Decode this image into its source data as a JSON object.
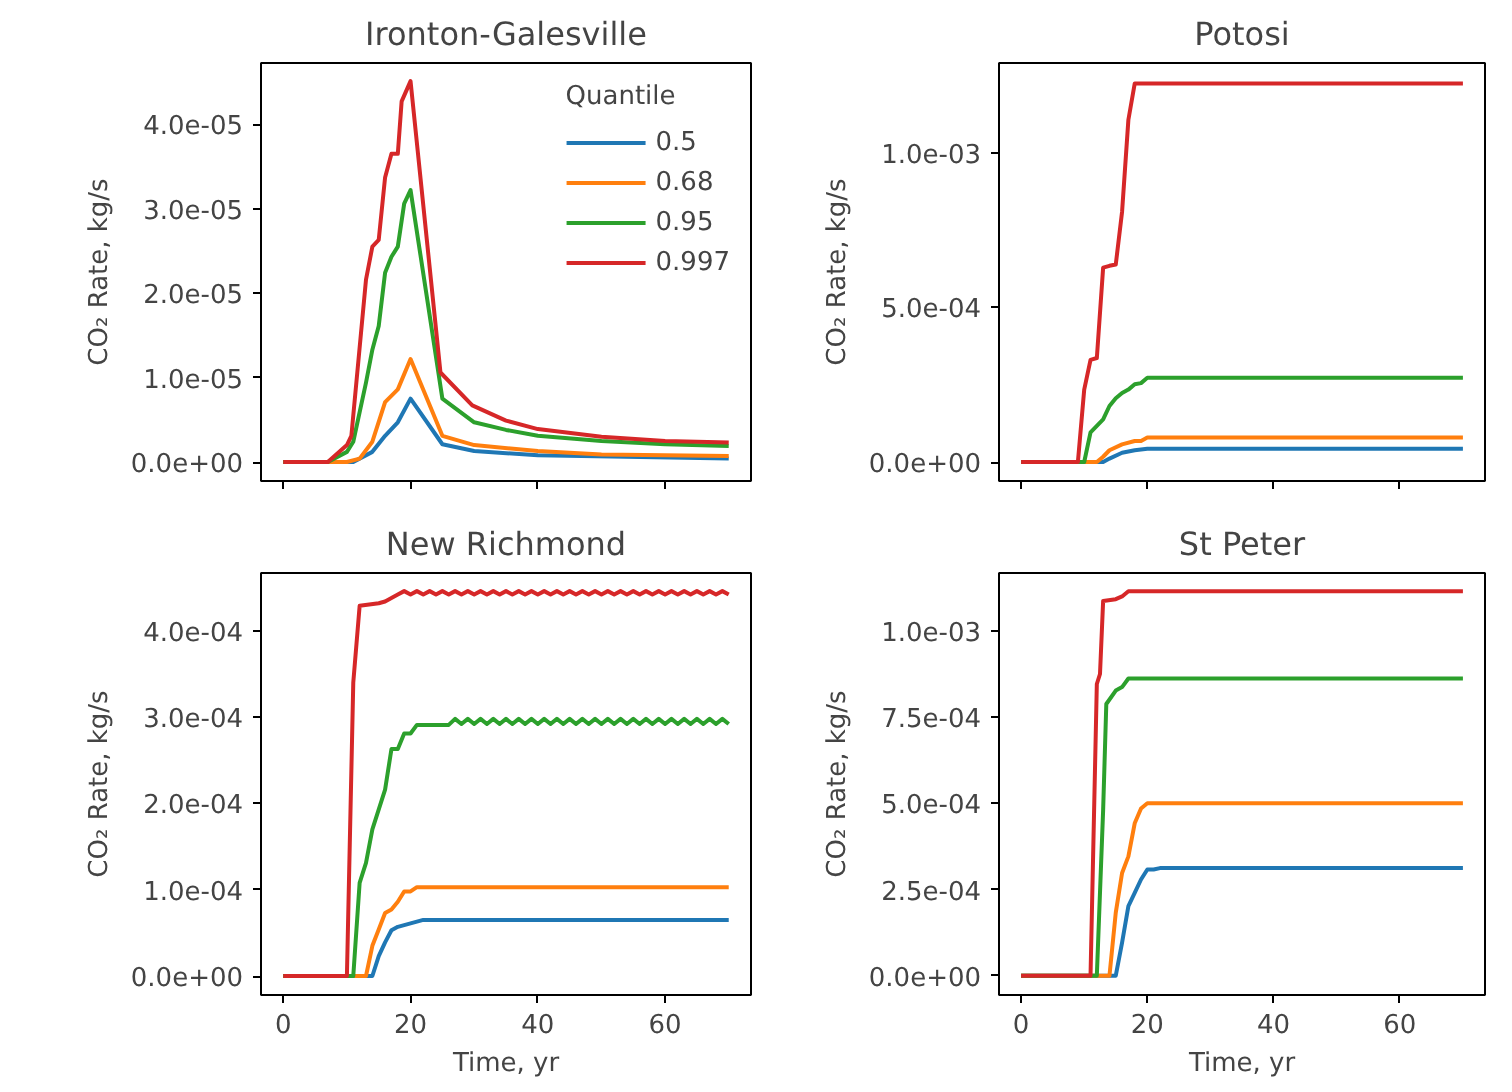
{
  "chart_data": [
    {
      "type": "line",
      "title": "Ironton-Galesville",
      "ylabel": "CO₂ Rate, kg/s",
      "xlim": [
        -3.5,
        73.5
      ],
      "xticks": [
        0,
        20,
        40,
        60
      ],
      "ylim": [
        -2.25e-06,
        4.725e-05
      ],
      "yticks": [
        {
          "value": 0,
          "label": "0.0e+00"
        },
        {
          "value": 1e-05,
          "label": "1.0e-05"
        },
        {
          "value": 2e-05,
          "label": "2.0e-05"
        },
        {
          "value": 3e-05,
          "label": "3.0e-05"
        },
        {
          "value": 4e-05,
          "label": "4.0e-05"
        }
      ],
      "tick_labels": "y",
      "grid": false,
      "legend": "top right",
      "legend_title": "Quantile",
      "line_style": "solid",
      "series": [
        {
          "name": "0.5",
          "color": "#1f77b4",
          "x": [
            0,
            11,
            14,
            16,
            18,
            20,
            25,
            30,
            40,
            70
          ],
          "values": [
            0,
            0,
            1.2e-06,
            3.1e-06,
            4.7e-06,
            7.5e-06,
            2.1e-06,
            1.3e-06,
            8e-07,
            4e-07
          ]
        },
        {
          "name": "0.68",
          "color": "#ff7f0e",
          "x": [
            0,
            10,
            12,
            14,
            16,
            18,
            20,
            25,
            30,
            40,
            50,
            70
          ],
          "values": [
            0,
            0,
            4e-07,
            2.4e-06,
            7.1e-06,
            8.6e-06,
            1.22e-05,
            3.1e-06,
            2e-06,
            1.3e-06,
            9e-07,
            7e-07
          ]
        },
        {
          "name": "0.95",
          "color": "#2ca02c",
          "x": [
            0,
            7,
            10,
            11,
            13,
            14,
            15,
            16,
            17,
            18,
            19,
            20,
            25,
            30,
            35,
            40,
            50,
            60,
            70
          ],
          "values": [
            0,
            0,
            1.2e-06,
            2.4e-06,
            9.4e-06,
            1.33e-05,
            1.61e-05,
            2.24e-05,
            2.43e-05,
            2.55e-05,
            3.06e-05,
            3.22e-05,
            7.5e-06,
            4.7e-06,
            3.8e-06,
            3.1e-06,
            2.5e-06,
            2.1e-06,
            1.9e-06
          ]
        },
        {
          "name": "0.997",
          "color": "#d62728",
          "x": [
            0,
            7,
            10,
            10.7,
            13,
            14,
            15,
            16,
            17,
            18,
            18.6,
            20,
            24.7,
            29.7,
            35,
            40,
            50,
            60,
            70
          ],
          "values": [
            0,
            0,
            2e-06,
            3.1e-06,
            2.16e-05,
            2.55e-05,
            2.63e-05,
            3.37e-05,
            3.65e-05,
            3.65e-05,
            4.27e-05,
            4.51e-05,
            1.06e-05,
            6.7e-06,
            4.9e-06,
            3.9e-06,
            3e-06,
            2.5e-06,
            2.3e-06
          ]
        }
      ]
    },
    {
      "type": "line",
      "title": "Potosi",
      "ylabel": "CO₂ Rate, kg/s",
      "xlim": [
        -3.5,
        73.5
      ],
      "xticks": [
        0,
        20,
        40,
        60
      ],
      "ylim": [
        -6.14e-05,
        0.0012894
      ],
      "yticks": [
        {
          "value": 0,
          "label": "0.0e+00"
        },
        {
          "value": 0.0005,
          "label": "5.0e-04"
        },
        {
          "value": 0.001,
          "label": "1.0e-03"
        }
      ],
      "tick_labels": "y",
      "grid": false,
      "line_style": "solid",
      "series": [
        {
          "color": "#1f77b4",
          "x": [
            0,
            13,
            14,
            16,
            18,
            20,
            70
          ],
          "values": [
            0,
            0,
            1.1e-05,
            3e-05,
            3.8e-05,
            4.3e-05,
            4.3e-05
          ]
        },
        {
          "color": "#ff7f0e",
          "x": [
            0,
            12,
            13,
            14,
            16,
            18,
            19,
            20,
            70
          ],
          "values": [
            0,
            0,
            1.7e-05,
            3.8e-05,
            5.7e-05,
            6.8e-05,
            6.8e-05,
            7.9e-05,
            7.9e-05
          ]
        },
        {
          "color": "#2ca02c",
          "x": [
            0,
            10,
            11,
            12,
            13,
            14,
            15,
            16,
            17,
            18,
            19,
            20,
            70
          ],
          "values": [
            0,
            0,
            9.6e-05,
            0.000117,
            0.000138,
            0.000181,
            0.000206,
            0.000223,
            0.000234,
            0.000251,
            0.000255,
            0.000272,
            0.000272
          ]
        },
        {
          "color": "#d62728",
          "x": [
            0,
            9,
            10,
            11,
            12,
            13,
            14,
            15,
            16,
            17,
            18,
            70
          ],
          "values": [
            0,
            0,
            0.000234,
            0.00033,
            0.000336,
            0.000628,
            0.000634,
            0.000638,
            0.000809,
            0.001106,
            0.001223,
            0.001223
          ]
        }
      ]
    },
    {
      "type": "line",
      "title": "New Richmond",
      "xlabel": "Time, yr",
      "ylabel": "CO₂ Rate, kg/s",
      "xlim": [
        -3.5,
        73.5
      ],
      "xticks": [
        0,
        20,
        40,
        60
      ],
      "ylim": [
        -2.2e-05,
        0.000467
      ],
      "yticks": [
        {
          "value": 0,
          "label": "0.0e+00"
        },
        {
          "value": 0.0001,
          "label": "1.0e-04"
        },
        {
          "value": 0.0002,
          "label": "2.0e-04"
        },
        {
          "value": 0.0003,
          "label": "3.0e-04"
        },
        {
          "value": 0.0004,
          "label": "4.0e-04"
        }
      ],
      "grid": false,
      "line_style": "solid",
      "series": [
        {
          "color": "#1f77b4",
          "x": [
            0,
            14,
            15,
            16,
            17,
            18,
            19,
            21,
            22,
            70
          ],
          "values": [
            0,
            0,
            2.3e-05,
            3.9e-05,
            5.3e-05,
            5.7e-05,
            5.9e-05,
            6.3e-05,
            6.5e-05,
            6.5e-05
          ]
        },
        {
          "color": "#ff7f0e",
          "x": [
            0,
            13,
            14,
            15,
            16,
            17,
            18,
            19,
            20,
            21,
            70
          ],
          "values": [
            0,
            0,
            3.5e-05,
            5.4e-05,
            7.3e-05,
            7.7e-05,
            8.6e-05,
            9.8e-05,
            9.8e-05,
            0.000103,
            0.000103
          ]
        },
        {
          "color": "#2ca02c",
          "x": [
            0,
            11,
            12,
            13,
            14,
            16,
            17,
            18,
            19,
            20,
            21,
            26,
            27,
            28,
            29,
            30,
            31,
            32,
            33,
            34,
            35,
            36,
            37,
            38,
            39,
            40,
            41,
            42,
            43,
            44,
            45,
            46,
            47,
            48,
            49,
            50,
            51,
            52,
            53,
            54,
            55,
            56,
            57,
            58,
            59,
            60,
            61,
            62,
            63,
            64,
            65,
            66,
            67,
            68,
            69,
            70
          ],
          "values": [
            0,
            0,
            0.000108,
            0.000131,
            0.00017,
            0.000216,
            0.000263,
            0.000263,
            0.000281,
            0.000281,
            0.000291,
            0.000291,
            0.000298,
            0.000292,
            0.000298,
            0.000292,
            0.000298,
            0.000292,
            0.000298,
            0.000292,
            0.000298,
            0.000292,
            0.000298,
            0.000292,
            0.000298,
            0.000292,
            0.000298,
            0.000292,
            0.000298,
            0.000292,
            0.000298,
            0.000292,
            0.000298,
            0.000292,
            0.000298,
            0.000292,
            0.000298,
            0.000292,
            0.000298,
            0.000292,
            0.000298,
            0.000292,
            0.000298,
            0.000292,
            0.000298,
            0.000292,
            0.000298,
            0.000292,
            0.000298,
            0.000292,
            0.000298,
            0.000292,
            0.000298,
            0.000292,
            0.000298,
            0.000292
          ]
        },
        {
          "color": "#d62728",
          "x": [
            0,
            10,
            11,
            12,
            15,
            16,
            18,
            19,
            20,
            21,
            22,
            23,
            24,
            25,
            26,
            27,
            28,
            29,
            30,
            31,
            32,
            33,
            34,
            35,
            36,
            37,
            38,
            39,
            40,
            41,
            42,
            43,
            44,
            45,
            46,
            47,
            48,
            49,
            50,
            51,
            52,
            53,
            54,
            55,
            56,
            57,
            58,
            59,
            60,
            61,
            62,
            63,
            64,
            65,
            66,
            67,
            68,
            69,
            70
          ],
          "values": [
            0,
            0,
            0.00034,
            0.000429,
            0.000432,
            0.000434,
            0.000442,
            0.000446,
            0.000442,
            0.000446,
            0.000442,
            0.000446,
            0.000442,
            0.000446,
            0.000442,
            0.000446,
            0.000442,
            0.000446,
            0.000442,
            0.000446,
            0.000442,
            0.000446,
            0.000442,
            0.000446,
            0.000442,
            0.000446,
            0.000442,
            0.000446,
            0.000442,
            0.000446,
            0.000442,
            0.000446,
            0.000442,
            0.000446,
            0.000442,
            0.000446,
            0.000442,
            0.000446,
            0.000442,
            0.000446,
            0.000442,
            0.000446,
            0.000442,
            0.000446,
            0.000442,
            0.000446,
            0.000442,
            0.000446,
            0.000442,
            0.000446,
            0.000442,
            0.000446,
            0.000442,
            0.000446,
            0.000442,
            0.000446,
            0.000442,
            0.000446,
            0.000442
          ]
        }
      ]
    },
    {
      "type": "line",
      "title": "St Peter",
      "xlabel": "Time, yr",
      "ylabel": "CO₂ Rate, kg/s",
      "xlim": [
        -3.5,
        73.5
      ],
      "xticks": [
        0,
        20,
        40,
        60
      ],
      "ylim": [
        -5.6e-05,
        0.001168
      ],
      "yticks": [
        {
          "value": 0,
          "label": "0.0e+00"
        },
        {
          "value": 0.00025,
          "label": "2.5e-04"
        },
        {
          "value": 0.0005,
          "label": "5.0e-04"
        },
        {
          "value": 0.00075,
          "label": "7.5e-04"
        },
        {
          "value": 0.001,
          "label": "1.0e-03"
        }
      ],
      "grid": false,
      "line_style": "solid",
      "series": [
        {
          "color": "#1f77b4",
          "x": [
            0,
            15,
            16,
            17,
            18,
            19,
            20,
            21,
            22,
            70
          ],
          "values": [
            0,
            0,
            9.6e-05,
            0.000202,
            0.00024,
            0.000279,
            0.000308,
            0.000308,
            0.000312,
            0.000312
          ]
        },
        {
          "color": "#ff7f0e",
          "x": [
            0,
            14,
            15,
            16,
            17,
            18,
            19,
            20,
            70
          ],
          "values": [
            0,
            0,
            0.000183,
            0.000298,
            0.000346,
            0.000442,
            0.000485,
            0.0005,
            0.0005
          ]
        },
        {
          "color": "#2ca02c",
          "x": [
            0,
            12,
            13,
            13.5,
            15,
            16,
            17,
            70
          ],
          "values": [
            0,
            0,
            0.000481,
            0.000788,
            0.000827,
            0.000837,
            0.000862,
            0.000862
          ]
        },
        {
          "color": "#d62728",
          "x": [
            0,
            11,
            12,
            12.5,
            13,
            15,
            16,
            17,
            70
          ],
          "values": [
            0,
            0,
            0.000846,
            0.000875,
            0.001087,
            0.001092,
            0.0011,
            0.001115,
            0.001115
          ]
        }
      ]
    }
  ]
}
